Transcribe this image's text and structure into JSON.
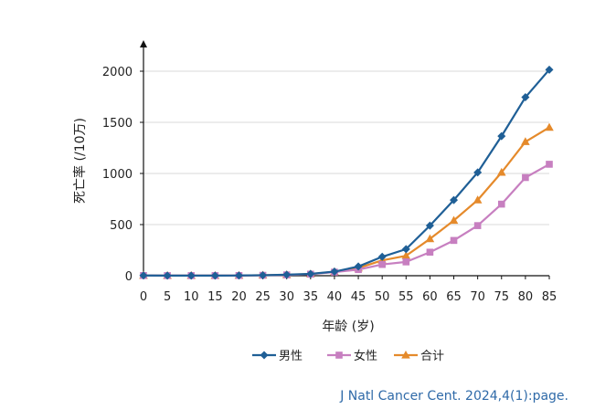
{
  "chart_data": {
    "type": "line",
    "title": "",
    "xlabel": "年龄 (岁)",
    "ylabel": "死亡率 (/10万)",
    "x": [
      0,
      5,
      10,
      15,
      20,
      25,
      30,
      35,
      40,
      45,
      50,
      55,
      60,
      65,
      70,
      75,
      80,
      85
    ],
    "xticks": [
      "0",
      "5",
      "10",
      "15",
      "20",
      "25",
      "30",
      "35",
      "40",
      "45",
      "50",
      "55",
      "60",
      "65",
      "70",
      "75",
      "80",
      "85"
    ],
    "yticks": [
      0,
      500,
      1000,
      1500,
      2000
    ],
    "ylim": [
      0,
      2250
    ],
    "grid": true,
    "legend_position": "bottom",
    "series": [
      {
        "name": "男性",
        "color": "#1f5f96",
        "marker": "diamond",
        "values": [
          2,
          1,
          1,
          1,
          2,
          5,
          10,
          18,
          40,
          90,
          185,
          260,
          490,
          740,
          1010,
          1365,
          1745,
          2015
        ]
      },
      {
        "name": "女性",
        "color": "#c77fc0",
        "marker": "square",
        "values": [
          2,
          1,
          1,
          1,
          2,
          4,
          8,
          15,
          35,
          60,
          110,
          135,
          230,
          345,
          490,
          700,
          960,
          1090
        ]
      },
      {
        "name": "合计",
        "color": "#e58a2b",
        "marker": "triangle",
        "values": [
          2,
          1,
          1,
          1,
          2,
          5,
          9,
          16,
          38,
          75,
          150,
          195,
          360,
          540,
          740,
          1010,
          1310,
          1450
        ]
      }
    ]
  },
  "citation": "J Natl Cancer Cent. 2024,4(1):page."
}
